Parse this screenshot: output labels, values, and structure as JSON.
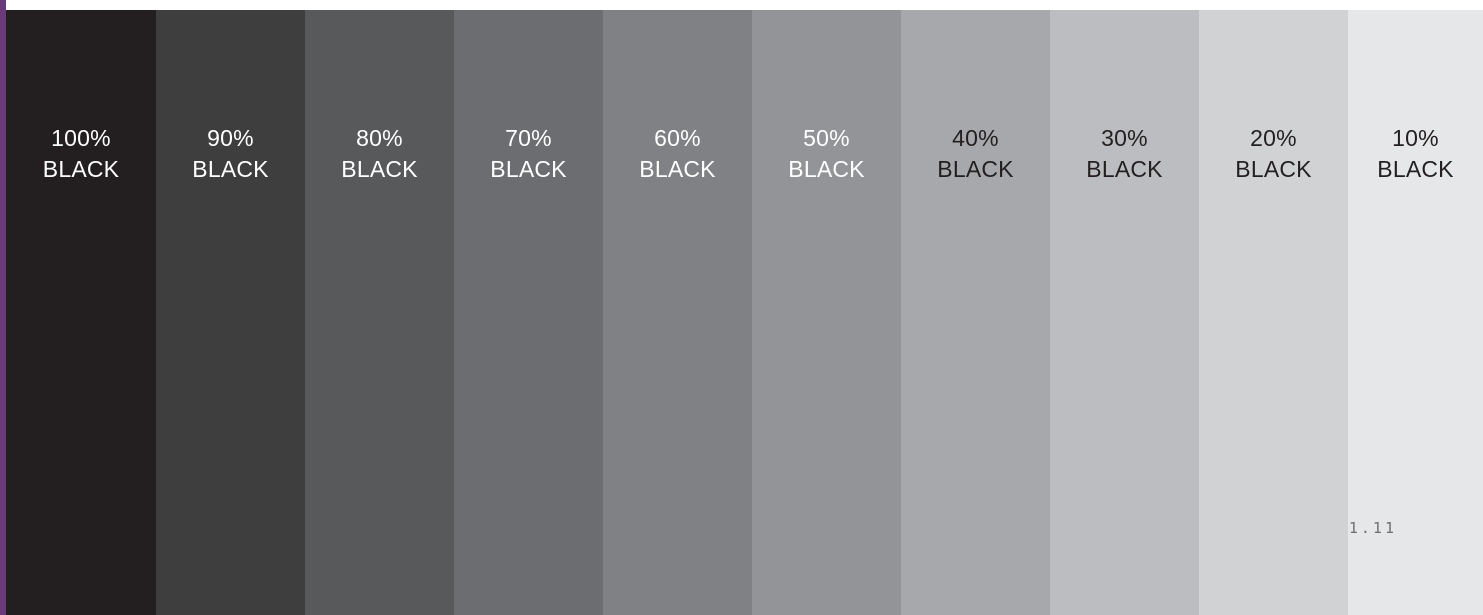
{
  "accent_color": "#6b3a7d",
  "swatches": [
    {
      "percent": "100%",
      "name": "BLACK",
      "color": "#231f20",
      "text_color": "#ffffff"
    },
    {
      "percent": "90%",
      "name": "BLACK",
      "color": "#3e3e3f",
      "text_color": "#ffffff"
    },
    {
      "percent": "80%",
      "name": "BLACK",
      "color": "#58595b",
      "text_color": "#ffffff"
    },
    {
      "percent": "70%",
      "name": "BLACK",
      "color": "#6c6d70",
      "text_color": "#ffffff"
    },
    {
      "percent": "60%",
      "name": "BLACK",
      "color": "#808184",
      "text_color": "#ffffff"
    },
    {
      "percent": "50%",
      "name": "BLACK",
      "color": "#939497",
      "text_color": "#ffffff"
    },
    {
      "percent": "40%",
      "name": "BLACK",
      "color": "#a7a8ab",
      "text_color": "#231f20"
    },
    {
      "percent": "30%",
      "name": "BLACK",
      "color": "#bcbdc0",
      "text_color": "#231f20"
    },
    {
      "percent": "20%",
      "name": "BLACK",
      "color": "#d1d2d4",
      "text_color": "#231f20"
    },
    {
      "percent": "10%",
      "name": "BLACK",
      "color": "#e6e7e8",
      "text_color": "#231f20"
    }
  ],
  "page_number": "1.11"
}
